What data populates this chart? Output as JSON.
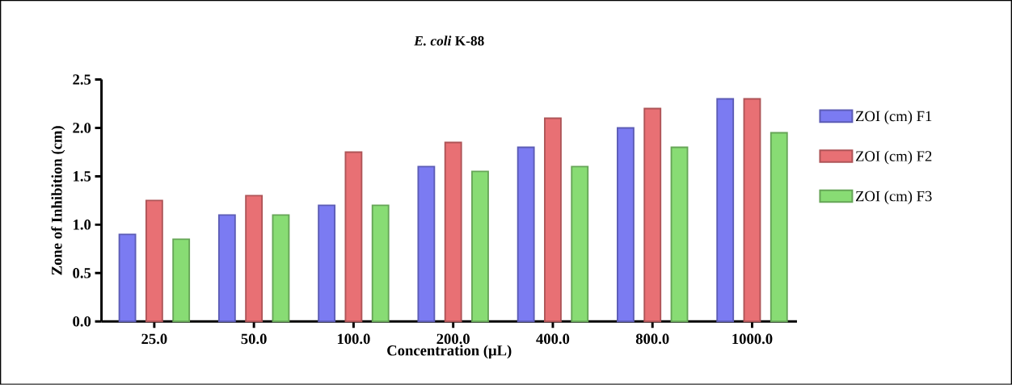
{
  "chart_data": {
    "type": "bar",
    "title": "*E. coli* K-88",
    "xlabel": "Concentration (μL)",
    "ylabel": "Zone of Inhibition (cm)",
    "categories": [
      "25.0",
      "50.0",
      "100.0",
      "200.0",
      "400.0",
      "800.0",
      "1000.0"
    ],
    "series": [
      {
        "name": "ZOI (cm) F1",
        "color": "#7b7bf2",
        "values": [
          0.9,
          1.1,
          1.2,
          1.6,
          1.8,
          2.0,
          2.3
        ]
      },
      {
        "name": "ZOI (cm) F2",
        "color": "#e87074",
        "values": [
          1.25,
          1.3,
          1.75,
          1.85,
          2.1,
          2.2,
          2.3
        ]
      },
      {
        "name": "ZOI (cm) F3",
        "color": "#88dc74",
        "values": [
          0.85,
          1.1,
          1.2,
          1.55,
          1.6,
          1.8,
          1.95
        ]
      }
    ],
    "ylim": [
      0,
      2.5
    ],
    "yticks": [
      {
        "value": 0,
        "label": "0.0"
      },
      {
        "value": 0.5,
        "label": "0.5"
      },
      {
        "value": 1,
        "label": "1.0"
      },
      {
        "value": 1.5,
        "label": "1.5"
      },
      {
        "value": 2,
        "label": "2.0"
      },
      {
        "value": 2.5,
        "label": "2.5"
      }
    ],
    "legend": "right",
    "grid": false
  }
}
